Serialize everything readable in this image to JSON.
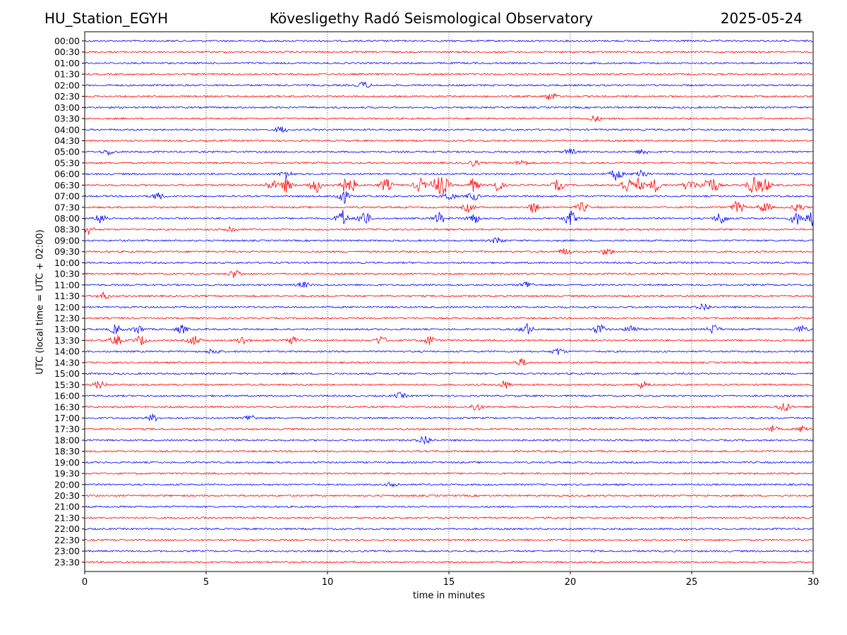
{
  "header": {
    "station": "HU_Station_EGYH",
    "observatory": "Kövesligethy Radó Seismological Observatory",
    "date": "2025-05-24"
  },
  "chart_data": {
    "type": "line",
    "title": "Kövesligethy Radó Seismological Observatory",
    "xlabel": "time in minutes",
    "ylabel": "UTC (local time = UTC + 02:00)",
    "xlim": [
      0,
      30
    ],
    "x_ticks": [
      0,
      5,
      10,
      15,
      20,
      25,
      30
    ],
    "vertical_grid": [
      5,
      10,
      15,
      20,
      25
    ],
    "grid_style": "dotted",
    "colors": {
      "even_rows": "#0000ff",
      "odd_rows": "#ff0000"
    },
    "rows": [
      {
        "label": "00:00",
        "events": []
      },
      {
        "label": "00:30",
        "events": []
      },
      {
        "label": "01:00",
        "events": []
      },
      {
        "label": "01:30",
        "events": []
      },
      {
        "label": "02:00",
        "events": [
          {
            "t": 11.5,
            "amp": 0.3
          }
        ]
      },
      {
        "label": "02:30",
        "events": [
          {
            "t": 19.2,
            "amp": 0.35
          }
        ]
      },
      {
        "label": "03:00",
        "events": []
      },
      {
        "label": "03:30",
        "events": [
          {
            "t": 21.0,
            "amp": 0.25
          }
        ]
      },
      {
        "label": "04:00",
        "events": [
          {
            "t": 8.1,
            "amp": 0.3
          }
        ]
      },
      {
        "label": "04:30",
        "events": []
      },
      {
        "label": "05:00",
        "events": [
          {
            "t": 1.0,
            "amp": 0.25
          },
          {
            "t": 20.0,
            "amp": 0.25
          },
          {
            "t": 23.0,
            "amp": 0.25
          }
        ]
      },
      {
        "label": "05:30",
        "events": [
          {
            "t": 16.0,
            "amp": 0.25
          },
          {
            "t": 18.0,
            "amp": 0.25
          }
        ]
      },
      {
        "label": "06:00",
        "events": [
          {
            "t": 8.3,
            "amp": 0.35
          },
          {
            "t": 21.9,
            "amp": 0.55
          },
          {
            "t": 22.9,
            "amp": 0.45
          }
        ]
      },
      {
        "label": "06:30",
        "events": [
          {
            "t": 7.7,
            "amp": 0.4
          },
          {
            "t": 8.3,
            "amp": 0.6
          },
          {
            "t": 9.5,
            "amp": 0.7
          },
          {
            "t": 10.6,
            "amp": 0.6
          },
          {
            "t": 11.0,
            "amp": 0.5
          },
          {
            "t": 12.4,
            "amp": 0.55
          },
          {
            "t": 13.8,
            "amp": 0.6
          },
          {
            "t": 14.5,
            "amp": 0.7
          },
          {
            "t": 14.8,
            "amp": 0.6
          },
          {
            "t": 16.0,
            "amp": 0.55
          },
          {
            "t": 17.0,
            "amp": 0.5
          },
          {
            "t": 19.5,
            "amp": 0.45
          },
          {
            "t": 22.3,
            "amp": 0.65
          },
          {
            "t": 22.8,
            "amp": 0.55
          },
          {
            "t": 23.5,
            "amp": 0.55
          },
          {
            "t": 24.9,
            "amp": 0.55
          },
          {
            "t": 25.6,
            "amp": 0.5
          },
          {
            "t": 25.9,
            "amp": 0.55
          },
          {
            "t": 27.5,
            "amp": 0.75
          },
          {
            "t": 28.0,
            "amp": 0.65
          }
        ]
      },
      {
        "label": "07:00",
        "events": [
          {
            "t": 10.6,
            "amp": 0.7
          },
          {
            "t": 3.0,
            "amp": 0.3
          },
          {
            "t": 15.0,
            "amp": 0.4
          },
          {
            "t": 16.0,
            "amp": 0.35
          }
        ]
      },
      {
        "label": "07:30",
        "events": [
          {
            "t": 15.8,
            "amp": 0.35
          },
          {
            "t": 18.5,
            "amp": 0.45
          },
          {
            "t": 20.5,
            "amp": 0.4
          },
          {
            "t": 26.9,
            "amp": 0.55
          },
          {
            "t": 28.0,
            "amp": 0.45
          },
          {
            "t": 29.4,
            "amp": 0.4
          }
        ]
      },
      {
        "label": "08:00",
        "events": [
          {
            "t": 0.7,
            "amp": 0.5
          },
          {
            "t": 10.6,
            "amp": 0.75
          },
          {
            "t": 11.5,
            "amp": 0.7
          },
          {
            "t": 14.6,
            "amp": 0.5
          },
          {
            "t": 16.0,
            "amp": 0.5
          },
          {
            "t": 20.0,
            "amp": 0.7
          },
          {
            "t": 26.2,
            "amp": 0.55
          },
          {
            "t": 29.3,
            "amp": 0.55
          },
          {
            "t": 29.9,
            "amp": 0.65
          }
        ]
      },
      {
        "label": "08:30",
        "events": [
          {
            "t": 0.1,
            "amp": 0.45
          },
          {
            "t": 6.0,
            "amp": 0.3
          }
        ]
      },
      {
        "label": "09:00",
        "events": [
          {
            "t": 17.0,
            "amp": 0.3
          }
        ]
      },
      {
        "label": "09:30",
        "events": [
          {
            "t": 19.8,
            "amp": 0.3
          },
          {
            "t": 21.5,
            "amp": 0.3
          }
        ]
      },
      {
        "label": "10:00",
        "events": []
      },
      {
        "label": "10:30",
        "events": [
          {
            "t": 6.2,
            "amp": 0.35
          }
        ]
      },
      {
        "label": "11:00",
        "events": [
          {
            "t": 18.2,
            "amp": 0.35
          },
          {
            "t": 9.0,
            "amp": 0.25
          }
        ]
      },
      {
        "label": "11:30",
        "events": [
          {
            "t": 0.8,
            "amp": 0.3
          }
        ]
      },
      {
        "label": "12:00",
        "events": [
          {
            "t": 25.5,
            "amp": 0.35
          }
        ]
      },
      {
        "label": "12:30",
        "events": []
      },
      {
        "label": "13:00",
        "events": [
          {
            "t": 1.3,
            "amp": 0.4
          },
          {
            "t": 2.2,
            "amp": 0.35
          },
          {
            "t": 4.0,
            "amp": 0.35
          },
          {
            "t": 18.2,
            "amp": 0.5
          },
          {
            "t": 21.2,
            "amp": 0.45
          },
          {
            "t": 22.5,
            "amp": 0.4
          },
          {
            "t": 25.9,
            "amp": 0.4
          },
          {
            "t": 29.5,
            "amp": 0.35
          }
        ]
      },
      {
        "label": "13:30",
        "events": [
          {
            "t": 1.3,
            "amp": 0.45
          },
          {
            "t": 2.3,
            "amp": 0.4
          },
          {
            "t": 4.5,
            "amp": 0.4
          },
          {
            "t": 6.5,
            "amp": 0.35
          },
          {
            "t": 8.5,
            "amp": 0.35
          },
          {
            "t": 12.2,
            "amp": 0.35
          },
          {
            "t": 14.2,
            "amp": 0.4
          }
        ]
      },
      {
        "label": "14:00",
        "events": [
          {
            "t": 19.5,
            "amp": 0.3
          },
          {
            "t": 5.3,
            "amp": 0.25
          }
        ]
      },
      {
        "label": "14:30",
        "events": [
          {
            "t": 18.0,
            "amp": 0.3
          }
        ]
      },
      {
        "label": "15:00",
        "events": []
      },
      {
        "label": "15:30",
        "events": [
          {
            "t": 17.3,
            "amp": 0.35
          },
          {
            "t": 0.6,
            "amp": 0.3
          },
          {
            "t": 23.0,
            "amp": 0.3
          }
        ]
      },
      {
        "label": "16:00",
        "events": [
          {
            "t": 13.0,
            "amp": 0.25
          }
        ]
      },
      {
        "label": "16:30",
        "events": [
          {
            "t": 16.1,
            "amp": 0.35
          },
          {
            "t": 28.8,
            "amp": 0.45
          }
        ]
      },
      {
        "label": "17:00",
        "events": [
          {
            "t": 2.8,
            "amp": 0.3
          },
          {
            "t": 6.8,
            "amp": 0.3
          }
        ]
      },
      {
        "label": "17:30",
        "events": [
          {
            "t": 28.3,
            "amp": 0.3
          },
          {
            "t": 29.6,
            "amp": 0.3
          }
        ]
      },
      {
        "label": "18:00",
        "events": [
          {
            "t": 14.0,
            "amp": 0.45
          }
        ]
      },
      {
        "label": "18:30",
        "events": []
      },
      {
        "label": "19:00",
        "events": []
      },
      {
        "label": "19:30",
        "events": []
      },
      {
        "label": "20:00",
        "events": [
          {
            "t": 12.7,
            "amp": 0.25
          }
        ]
      },
      {
        "label": "20:30",
        "events": []
      },
      {
        "label": "21:00",
        "events": []
      },
      {
        "label": "21:30",
        "events": []
      },
      {
        "label": "22:00",
        "events": []
      },
      {
        "label": "22:30",
        "events": []
      },
      {
        "label": "23:00",
        "events": []
      },
      {
        "label": "23:30",
        "events": []
      }
    ]
  }
}
